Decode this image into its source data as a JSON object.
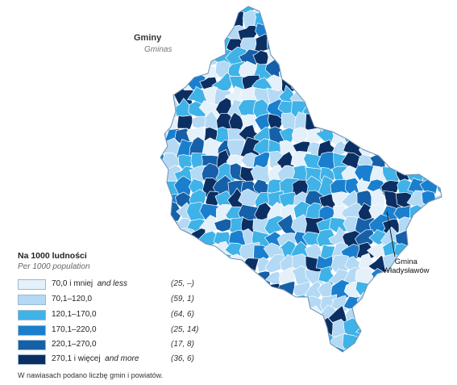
{
  "map": {
    "title": "Gminy",
    "subtitle": "Gminas",
    "callout": {
      "line1": "Gmina",
      "line2": "Władysławów"
    }
  },
  "legend": {
    "title": "Na 1000 ludności",
    "subtitle": "Per 1000 population",
    "classes": [
      {
        "label_pl": "70,0 i mniej",
        "label_en": "and less",
        "count": "(25, –)",
        "color": "#e4f0fa"
      },
      {
        "label_pl": "70,1–120,0",
        "label_en": "",
        "count": "(59, 1)",
        "color": "#b3d9f4"
      },
      {
        "label_pl": "120,1–170,0",
        "label_en": "",
        "count": "(64, 6)",
        "color": "#3fb2e8"
      },
      {
        "label_pl": "170,1–220,0",
        "label_en": "",
        "count": "(25, 14)",
        "color": "#1a7fcf"
      },
      {
        "label_pl": "220,1–270,0",
        "label_en": "",
        "count": "(17, 8)",
        "color": "#1560a8"
      },
      {
        "label_pl": "270,1 i więcej",
        "label_en": "and more",
        "count": "(36, 6)",
        "color": "#0b2f63"
      }
    ],
    "footnote": "W nawiasach podano liczbę gmin i powiatów."
  }
}
